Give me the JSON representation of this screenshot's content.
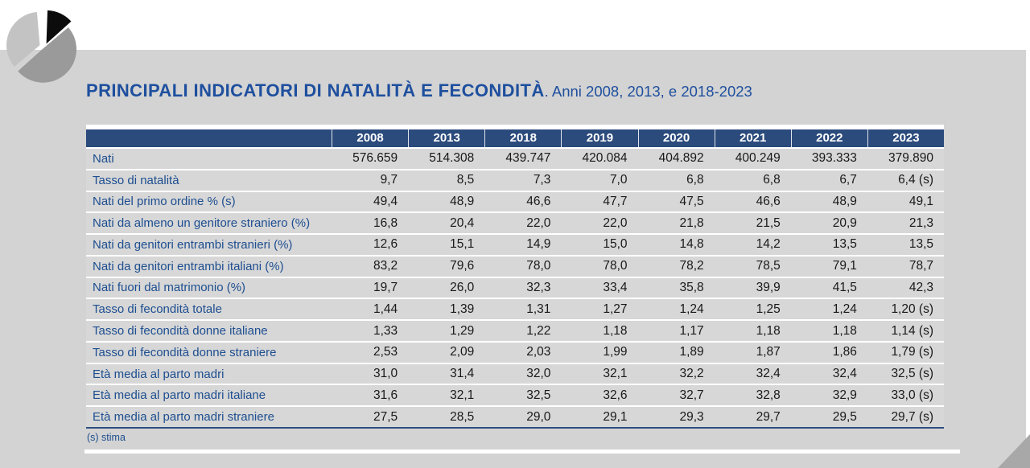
{
  "header": {
    "title_bold": "PRINCIPALI INDICATORI DI NATALITÀ E FECONDITÀ",
    "title_rest": ". Anni 2008, 2013, e 2018-2023"
  },
  "table": {
    "columns": [
      "2008",
      "2013",
      "2018",
      "2019",
      "2020",
      "2021",
      "2022",
      "2023"
    ],
    "rows": [
      {
        "label": "Nati",
        "values": [
          "576.659",
          "514.308",
          "439.747",
          "420.084",
          "404.892",
          "400.249",
          "393.333",
          "379.890"
        ]
      },
      {
        "label": "Tasso di natalità",
        "values": [
          "9,7",
          "8,5",
          "7,3",
          "7,0",
          "6,8",
          "6,8",
          "6,7",
          "6,4 (s)"
        ]
      },
      {
        "label": "Nati del primo ordine % (s)",
        "values": [
          "49,4",
          "48,9",
          "46,6",
          "47,7",
          "47,5",
          "46,6",
          "48,9",
          "49,1"
        ]
      },
      {
        "label": "Nati da almeno un genitore straniero (%)",
        "values": [
          "16,8",
          "20,4",
          "22,0",
          "22,0",
          "21,8",
          "21,5",
          "20,9",
          "21,3"
        ]
      },
      {
        "label": "Nati da genitori entrambi stranieri (%)",
        "values": [
          "12,6",
          "15,1",
          "14,9",
          "15,0",
          "14,8",
          "14,2",
          "13,5",
          "13,5"
        ]
      },
      {
        "label": "Nati da genitori entrambi italiani (%)",
        "values": [
          "83,2",
          "79,6",
          "78,0",
          "78,0",
          "78,2",
          "78,5",
          "79,1",
          "78,7"
        ]
      },
      {
        "label": "Nati fuori dal matrimonio (%)",
        "values": [
          "19,7",
          "26,0",
          "32,3",
          "33,4",
          "35,8",
          "39,9",
          "41,5",
          "42,3"
        ]
      },
      {
        "label": "Tasso di fecondità totale",
        "values": [
          "1,44",
          "1,39",
          "1,31",
          "1,27",
          "1,24",
          "1,25",
          "1,24",
          "1,20 (s)"
        ]
      },
      {
        "label": "Tasso di fecondità donne italiane",
        "values": [
          "1,33",
          "1,29",
          "1,22",
          "1,18",
          "1,17",
          "1,18",
          "1,18",
          "1,14 (s)"
        ]
      },
      {
        "label": "Tasso di fecondità donne straniere",
        "values": [
          "2,53",
          "2,09",
          "2,03",
          "1,99",
          "1,89",
          "1,87",
          "1,86",
          "1,79 (s)"
        ]
      },
      {
        "label": "Età media al parto madri",
        "values": [
          "31,0",
          "31,4",
          "32,0",
          "32,1",
          "32,2",
          "32,4",
          "32,4",
          "32,5 (s)"
        ]
      },
      {
        "label": "Età media al parto madri italiane",
        "values": [
          "31,6",
          "32,1",
          "32,5",
          "32,6",
          "32,7",
          "32,8",
          "32,9",
          "33,0 (s)"
        ]
      },
      {
        "label": "Età media al parto madri straniere",
        "values": [
          "27,5",
          "28,5",
          "29,0",
          "29,1",
          "29,3",
          "29,7",
          "29,5",
          "29,7 (s)"
        ]
      }
    ]
  },
  "footnote": "(s) stima",
  "colors": {
    "header_navy": "#2b4b7c",
    "title_blue": "#1e4f9e",
    "label_blue": "#1d4e90",
    "value_dark": "#191919",
    "page_gray": "#d3d3d3",
    "row_gray": "#d7d7d7",
    "curl_gray": "#a8a8a8",
    "logo_black": "#0c0c0c",
    "logo_mid_gray": "#9a9a9a",
    "logo_light_gray": "#c3c3c3"
  }
}
